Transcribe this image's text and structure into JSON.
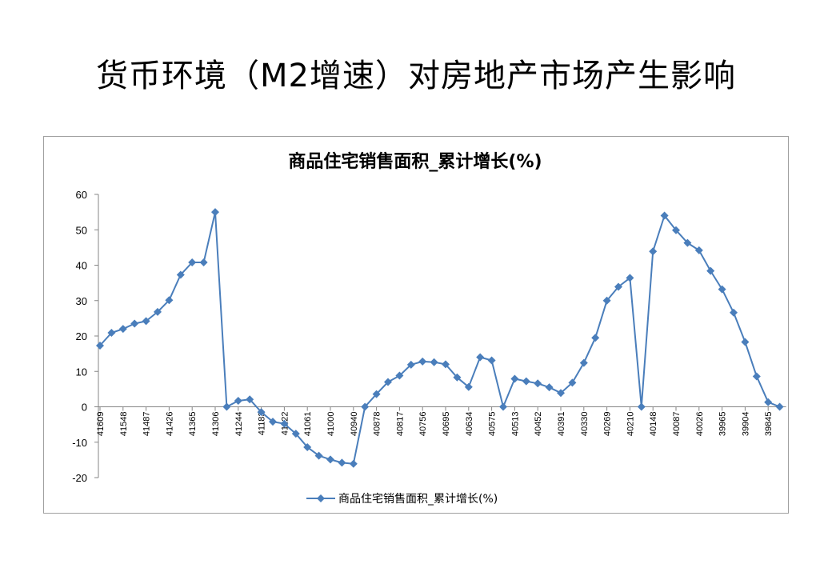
{
  "slide": {
    "title": "货币环境（M2增速）对房地产市场产生影响"
  },
  "chart_data": {
    "type": "line",
    "title": "商品住宅销售面积_累计增长(%)",
    "xlabel": "",
    "ylabel": "",
    "ylim": [
      -20,
      60
    ],
    "yticks": [
      -20,
      -10,
      0,
      10,
      20,
      30,
      40,
      50,
      60
    ],
    "grid": false,
    "legend": "bottom",
    "x_tick_labels": [
      "41609",
      "41548",
      "41487",
      "41426",
      "41365",
      "41306",
      "41244",
      "41183",
      "41122",
      "41061",
      "41000",
      "40940",
      "40878",
      "40817",
      "40756",
      "40695",
      "40634",
      "40575",
      "40513",
      "40452",
      "40391",
      "40330",
      "40269",
      "40210",
      "40148",
      "40087",
      "40026",
      "39965",
      "39904",
      "39845"
    ],
    "series": [
      {
        "name": "商品住宅销售面积_累计增长(%)",
        "color": "#4a7ebb",
        "values": [
          17.3,
          20.9,
          22.0,
          23.5,
          24.2,
          26.8,
          30.1,
          37.3,
          40.8,
          40.8,
          55.0,
          0,
          1.7,
          2.1,
          -1.5,
          -4.2,
          -4.8,
          -7.6,
          -11.4,
          -13.8,
          -14.9,
          -15.8,
          -16.1,
          0,
          3.6,
          7.0,
          8.8,
          11.9,
          12.8,
          12.6,
          12.0,
          8.3,
          5.6,
          14.0,
          13.1,
          0,
          7.9,
          7.2,
          6.6,
          5.5,
          3.9,
          6.8,
          12.4,
          19.5,
          30.0,
          33.9,
          36.4,
          0,
          43.9,
          54.0,
          49.9,
          46.3,
          44.2,
          38.4,
          33.2,
          26.6,
          18.3,
          8.6,
          1.3,
          0
        ]
      }
    ]
  }
}
